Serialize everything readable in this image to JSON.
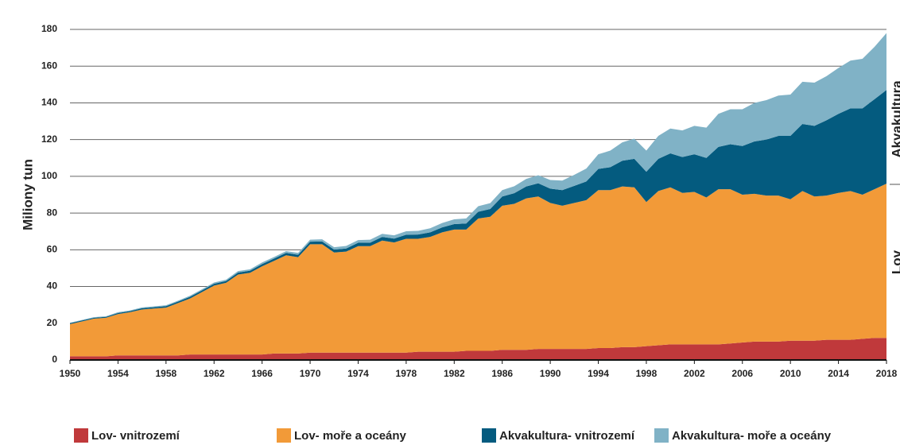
{
  "chart_data": {
    "type": "stacked_area",
    "y_label": "Miliony tun",
    "annotations": [
      "Akvakultura",
      "Lov"
    ],
    "x": [
      1950,
      1951,
      1952,
      1953,
      1954,
      1955,
      1956,
      1957,
      1958,
      1959,
      1960,
      1961,
      1962,
      1963,
      1964,
      1965,
      1966,
      1967,
      1968,
      1969,
      1970,
      1971,
      1972,
      1973,
      1974,
      1975,
      1976,
      1977,
      1978,
      1979,
      1980,
      1981,
      1982,
      1983,
      1984,
      1985,
      1986,
      1987,
      1988,
      1989,
      1990,
      1991,
      1992,
      1993,
      1994,
      1995,
      1996,
      1997,
      1998,
      1999,
      2000,
      2001,
      2002,
      2003,
      2004,
      2005,
      2006,
      2007,
      2008,
      2009,
      2010,
      2011,
      2012,
      2013,
      2014,
      2015,
      2016,
      2017,
      2018
    ],
    "series": [
      {
        "name": "Lov- vnitrozemí",
        "color": "#c0393b",
        "values": [
          2,
          2,
          2,
          2,
          2.5,
          2.5,
          2.5,
          2.5,
          2.5,
          2.5,
          3,
          3,
          3,
          3,
          3,
          3,
          3,
          3.5,
          3.5,
          3.5,
          4,
          4,
          4,
          4,
          4,
          4,
          4,
          4,
          4,
          4.5,
          4.5,
          4.5,
          4.5,
          5,
          5,
          5,
          5.5,
          5.5,
          5.5,
          6,
          6,
          6,
          6,
          6,
          6.5,
          6.5,
          7,
          7,
          7.5,
          8,
          8.5,
          8.5,
          8.5,
          8.5,
          8.5,
          9,
          9.5,
          10,
          10,
          10,
          10.5,
          10.5,
          10.5,
          11,
          11,
          11,
          11.5,
          12,
          12
        ]
      },
      {
        "name": "Lov- moře a oceány",
        "color": "#f29a38",
        "values": [
          17.5,
          19,
          20.5,
          21,
          22.5,
          23.5,
          25,
          25.5,
          26,
          28.5,
          30.5,
          34,
          37.5,
          39,
          43.5,
          44.5,
          48,
          50.5,
          53.5,
          52.5,
          59,
          59,
          54.5,
          55,
          58,
          58,
          61,
          60,
          62,
          61.5,
          62.5,
          65,
          66.5,
          66,
          72,
          73,
          78.5,
          79.5,
          82.5,
          83,
          79.5,
          78,
          79.5,
          81,
          86,
          86,
          87.5,
          87,
          78.5,
          84,
          85.5,
          82.5,
          83,
          80,
          84.5,
          84,
          80.5,
          80.5,
          79.5,
          79.5,
          77,
          81.5,
          78.5,
          78.5,
          80,
          81,
          78.5,
          81,
          84
        ]
      },
      {
        "name": "Akvakultura- vnitrozemí",
        "color": "#045b7f",
        "values": [
          0.5,
          0.5,
          0.5,
          0.5,
          0.6,
          0.6,
          0.7,
          0.7,
          0.8,
          0.8,
          0.9,
          0.9,
          1,
          1,
          1.1,
          1.1,
          1.2,
          1.2,
          1.3,
          1.3,
          1.4,
          1.5,
          1.6,
          1.7,
          1.8,
          1.9,
          2,
          2.1,
          2.2,
          2.3,
          2.5,
          2.7,
          3,
          3.3,
          3.7,
          4.2,
          5,
          5.8,
          6.5,
          7.2,
          7.8,
          8.5,
          9.3,
          10.2,
          11.5,
          12.5,
          14,
          15.5,
          16.5,
          17.5,
          18.5,
          19.5,
          20.5,
          21.5,
          23,
          24.5,
          26.5,
          28.5,
          30.5,
          32.5,
          34.5,
          36.5,
          38.5,
          41,
          43,
          45,
          47,
          49,
          51
        ]
      },
      {
        "name": "Akvakultura- moře a oceány",
        "color": "#80b2c6",
        "values": [
          0.3,
          0.3,
          0.3,
          0.3,
          0.4,
          0.4,
          0.4,
          0.5,
          0.5,
          0.5,
          0.6,
          0.6,
          0.7,
          0.7,
          0.8,
          0.8,
          0.9,
          0.9,
          1,
          1,
          1.1,
          1.2,
          1.3,
          1.4,
          1.5,
          1.6,
          1.7,
          1.8,
          1.9,
          2,
          2.2,
          2.4,
          2.6,
          2.8,
          3,
          3.2,
          3.5,
          3.8,
          4.1,
          4.4,
          4.7,
          5.2,
          6,
          7,
          8,
          9,
          10,
          11,
          11.5,
          12.5,
          13.5,
          14.5,
          15.5,
          16.5,
          18,
          19,
          20,
          21,
          21.5,
          22,
          22.5,
          23,
          23.5,
          24,
          25,
          26,
          27,
          28.5,
          31
        ]
      }
    ],
    "xlim": [
      1950,
      2018
    ],
    "xticks": [
      1950,
      1954,
      1958,
      1962,
      1966,
      1970,
      1974,
      1978,
      1982,
      1986,
      1990,
      1994,
      1998,
      2002,
      2006,
      2010,
      2014,
      2018
    ],
    "ylim": [
      0,
      180
    ],
    "yticks": [
      0,
      20,
      40,
      60,
      80,
      100,
      120,
      140,
      160,
      180
    ],
    "grid": true,
    "legend": "bottom"
  }
}
